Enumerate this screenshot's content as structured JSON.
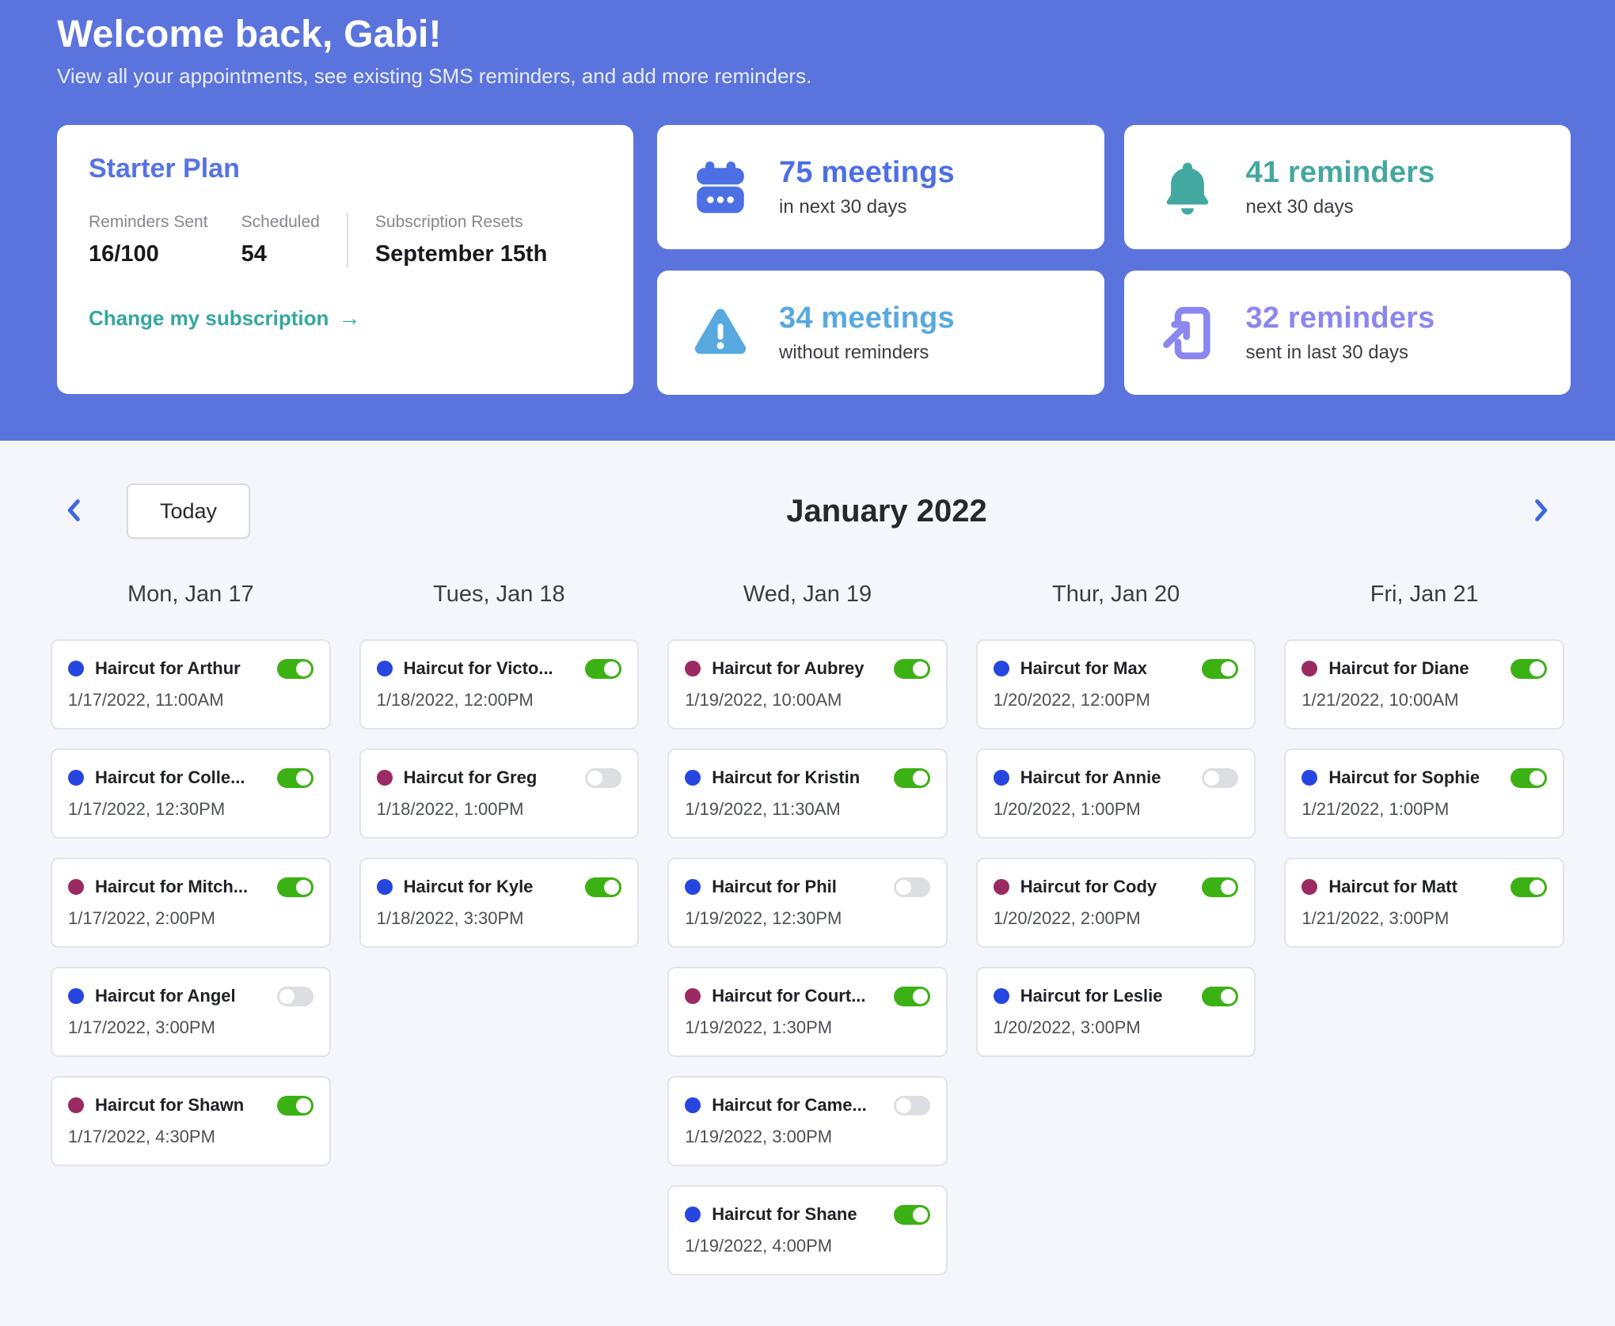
{
  "header": {
    "title": "Welcome back, Gabi!",
    "subtitle": "View all your appointments, see existing SMS reminders, and add more reminders."
  },
  "plan": {
    "title": "Starter Plan",
    "stats": [
      {
        "label": "Reminders Sent",
        "value": "16/100"
      },
      {
        "label": "Scheduled",
        "value": "54"
      },
      {
        "label": "Subscription Resets",
        "value": "September 15th"
      }
    ],
    "link_label": "Change my subscription",
    "link_arrow": "→"
  },
  "stat_cards": [
    {
      "icon": "calendar-icon",
      "value": "75 meetings",
      "label": "in next 30 days",
      "color": "#4c6fe4"
    },
    {
      "icon": "bell-icon",
      "value": "41 reminders",
      "label": "next 30 days",
      "color": "#43a8a0"
    },
    {
      "icon": "warning-icon",
      "value": "34 meetings",
      "label": "without reminders",
      "color": "#57a9df"
    },
    {
      "icon": "send-phone-icon",
      "value": "32 reminders",
      "label": "sent in last 30 days",
      "color": "#8b87ef"
    }
  ],
  "calendar": {
    "today_label": "Today",
    "month_title": "January 2022",
    "dot_colors": {
      "blue": "#2746e0",
      "maroon": "#9b2a62"
    },
    "toggle_on_color": "#3cb114",
    "columns": [
      {
        "day": "Mon, Jan 17",
        "appointments": [
          {
            "title": "Haircut for Arthur",
            "dot": "blue",
            "on": true,
            "datetime": "1/17/2022, 11:00AM"
          },
          {
            "title": "Haircut for Colle...",
            "dot": "blue",
            "on": true,
            "datetime": "1/17/2022, 12:30PM"
          },
          {
            "title": "Haircut for Mitch...",
            "dot": "maroon",
            "on": true,
            "datetime": "1/17/2022, 2:00PM"
          },
          {
            "title": "Haircut for Angel",
            "dot": "blue",
            "on": false,
            "datetime": "1/17/2022, 3:00PM"
          },
          {
            "title": "Haircut for Shawn",
            "dot": "maroon",
            "on": true,
            "datetime": "1/17/2022, 4:30PM"
          }
        ]
      },
      {
        "day": "Tues, Jan 18",
        "appointments": [
          {
            "title": "Haircut for Victo...",
            "dot": "blue",
            "on": true,
            "datetime": "1/18/2022, 12:00PM"
          },
          {
            "title": "Haircut for Greg",
            "dot": "maroon",
            "on": false,
            "datetime": "1/18/2022, 1:00PM"
          },
          {
            "title": "Haircut for Kyle",
            "dot": "blue",
            "on": true,
            "datetime": "1/18/2022, 3:30PM"
          }
        ]
      },
      {
        "day": "Wed, Jan 19",
        "appointments": [
          {
            "title": "Haircut for Aubrey",
            "dot": "maroon",
            "on": true,
            "datetime": "1/19/2022, 10:00AM"
          },
          {
            "title": "Haircut for Kristin",
            "dot": "blue",
            "on": true,
            "datetime": "1/19/2022, 11:30AM"
          },
          {
            "title": "Haircut for Phil",
            "dot": "blue",
            "on": false,
            "datetime": "1/19/2022, 12:30PM"
          },
          {
            "title": "Haircut for Court...",
            "dot": "maroon",
            "on": true,
            "datetime": "1/19/2022, 1:30PM"
          },
          {
            "title": "Haircut for Came...",
            "dot": "blue",
            "on": false,
            "datetime": "1/19/2022, 3:00PM"
          },
          {
            "title": "Haircut for Shane",
            "dot": "blue",
            "on": true,
            "datetime": "1/19/2022, 4:00PM"
          }
        ]
      },
      {
        "day": "Thur, Jan 20",
        "appointments": [
          {
            "title": "Haircut for Max",
            "dot": "blue",
            "on": true,
            "datetime": "1/20/2022, 12:00PM"
          },
          {
            "title": "Haircut for Annie",
            "dot": "blue",
            "on": false,
            "datetime": "1/20/2022, 1:00PM"
          },
          {
            "title": "Haircut for Cody",
            "dot": "maroon",
            "on": true,
            "datetime": "1/20/2022, 2:00PM"
          },
          {
            "title": "Haircut for Leslie",
            "dot": "blue",
            "on": true,
            "datetime": "1/20/2022, 3:00PM"
          }
        ]
      },
      {
        "day": "Fri, Jan 21",
        "appointments": [
          {
            "title": "Haircut for Diane",
            "dot": "maroon",
            "on": true,
            "datetime": "1/21/2022, 10:00AM"
          },
          {
            "title": "Haircut for Sophie",
            "dot": "blue",
            "on": true,
            "datetime": "1/21/2022, 1:00PM"
          },
          {
            "title": "Haircut for Matt",
            "dot": "maroon",
            "on": true,
            "datetime": "1/21/2022, 3:00PM"
          }
        ]
      }
    ]
  },
  "colors": {
    "header_bg": "#5b74dd",
    "page_bg": "#f5f6fb",
    "link_teal": "#33a89e"
  }
}
